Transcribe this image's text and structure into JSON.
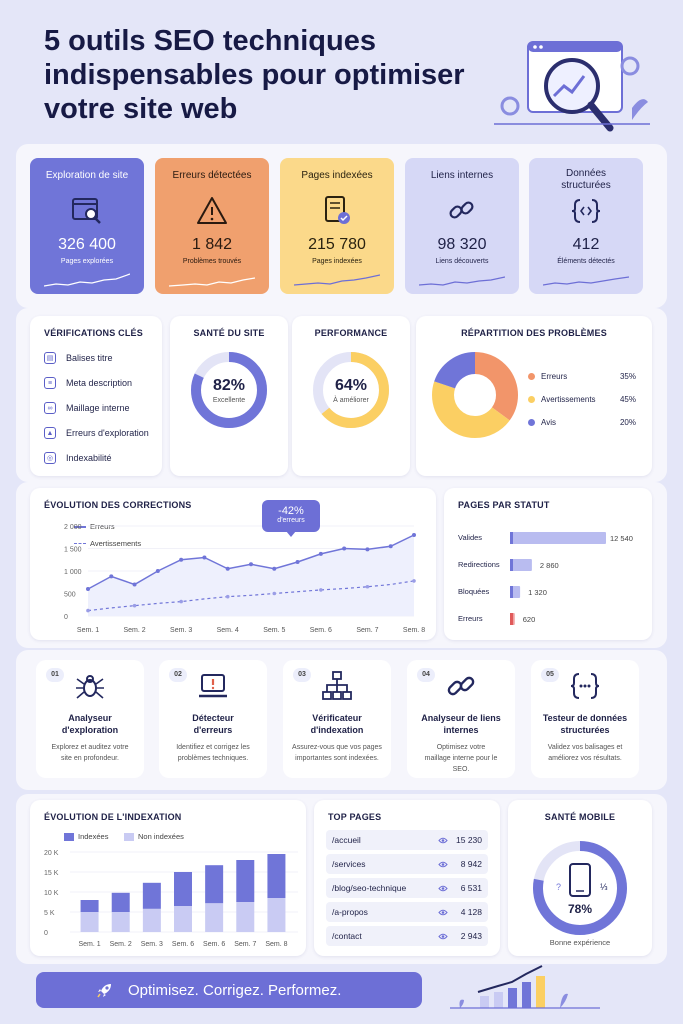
{
  "title_lines": [
    "5 outils SEO techniques",
    "indispensables pour optimiser",
    "votre site web"
  ],
  "kpis": [
    {
      "label": "Exploration de site",
      "value": "326 400",
      "sub": "Pages explorées",
      "bg": "#7075d8",
      "fg": "#ffffff",
      "icon": "crawl-browser-icon"
    },
    {
      "label": "Erreurs détectées",
      "value": "1 842",
      "sub": "Problèmes trouvés",
      "bg": "#f0a06e",
      "fg": "#2a1a10",
      "icon": "warning-icon"
    },
    {
      "label": "Pages indexées",
      "value": "215 780",
      "sub": "Pages indexées",
      "bg": "#fbd98a",
      "fg": "#2a2210",
      "icon": "indexed-document-icon"
    },
    {
      "label": "Liens internes",
      "value": "98 320",
      "sub": "Liens découverts",
      "bg": "#d6d8f6",
      "fg": "#1f2147",
      "icon": "link-icon"
    },
    {
      "label": "Données structurées",
      "value": "412",
      "sub": "Éléments détectés",
      "bg": "#d6d8f6",
      "fg": "#1f2147",
      "icon": "code-icon"
    }
  ],
  "checks": {
    "title": "VÉRIFICATIONS CLÉS",
    "items": [
      "Balises titre",
      "Meta description",
      "Maillage interne",
      "Erreurs d'exploration",
      "Indexabilité"
    ]
  },
  "health": {
    "title": "SANTÉ DU SITE",
    "value": "82%",
    "sub": "Excellente",
    "pct": 82
  },
  "performance": {
    "title": "PERFORMANCE",
    "value": "64%",
    "sub": "À améliorer",
    "pct": 64
  },
  "issues": {
    "title": "RÉPARTITION DES PROBLÈMES",
    "items": [
      {
        "name": "Erreurs",
        "value": "35%",
        "pct": 35,
        "color": "#f2956a"
      },
      {
        "name": "Avertissements",
        "value": "45%",
        "pct": 45,
        "color": "#fbcf63"
      },
      {
        "name": "Avis",
        "value": "20%",
        "pct": 20,
        "color": "#7075d8"
      }
    ]
  },
  "corrections": {
    "title": "ÉVOLUTION DES CORRECTIONS",
    "callout_value": "-42%",
    "callout_sub": "d'erreurs",
    "series_names": [
      "Erreurs",
      "Avertissements"
    ],
    "ticks": [
      "2 000",
      "1 500",
      "1 000",
      "500",
      "0"
    ],
    "weeks": [
      "Sem. 1",
      "Sem. 2",
      "Sem. 3",
      "Sem. 4",
      "Sem. 5",
      "Sem. 6",
      "Sem. 7",
      "Sem. 8"
    ]
  },
  "status": {
    "title": "PAGES PAR STATUT",
    "rows": [
      {
        "label": "Valides",
        "value": "12 540"
      },
      {
        "label": "Redirections",
        "value": "2 860"
      },
      {
        "label": "Bloquées",
        "value": "1 320"
      },
      {
        "label": "Erreurs",
        "value": "620"
      }
    ]
  },
  "tools": [
    {
      "num": "01",
      "title": "Analyseur d'exploration",
      "desc": "Explorez et auditez votre site en profondeur.",
      "icon": "spider-icon"
    },
    {
      "num": "02",
      "title": "Détecteur d'erreurs",
      "desc": "Identifiez et corrigez les problèmes techniques.",
      "icon": "laptop-warning-icon"
    },
    {
      "num": "03",
      "title": "Vérificateur d'indexation",
      "desc": "Assurez-vous que vos pages importantes sont indexées.",
      "icon": "sitemap-icon"
    },
    {
      "num": "04",
      "title": "Analyseur de liens internes",
      "desc": "Optimisez votre maillage interne pour le SEO.",
      "icon": "link-icon"
    },
    {
      "num": "05",
      "title": "Testeur de données structurées",
      "desc": "Validez vos balisages et améliorez vos résultats.",
      "icon": "code-braces-icon"
    }
  ],
  "indexation": {
    "title": "ÉVOLUTION DE L'INDEXATION",
    "legend": [
      "Indexées",
      "Non indexées"
    ],
    "ticks": [
      "20 K",
      "15 K",
      "10 K",
      "5 K",
      "0"
    ],
    "weeks": [
      "Sem. 1",
      "Sem. 2",
      "Sem. 3",
      "Sem. 6",
      "Sem. 6",
      "Sem. 7",
      "Sem. 8"
    ]
  },
  "top_pages": {
    "title": "TOP PAGES",
    "rows": [
      {
        "path": "/accueil",
        "views": "15 230"
      },
      {
        "path": "/services",
        "views": "8 942"
      },
      {
        "path": "/blog/seo-technique",
        "views": "6 531"
      },
      {
        "path": "/a-propos",
        "views": "4 128"
      },
      {
        "path": "/contact",
        "views": "2 943"
      }
    ]
  },
  "mobile": {
    "title": "SANTÉ MOBILE",
    "value": "78%",
    "sub": "Bonne expérience",
    "pct": 78
  },
  "cta": "Optimisez. Corrigez. Performez.",
  "colors": {
    "primary": "#7075d8",
    "light": "#c9cbf3",
    "orange": "#f2956a",
    "yellow": "#fbcf63"
  },
  "chart_data": [
    {
      "type": "line",
      "title": "ÉVOLUTION DES CORRECTIONS",
      "x": [
        "Sem. 1",
        "",
        "Sem. 2",
        "",
        "Sem. 3",
        "",
        "Sem. 4",
        "",
        "Sem. 5",
        "",
        "Sem. 6",
        "",
        "Sem. 7",
        "",
        "Sem. 8"
      ],
      "series": [
        {
          "name": "Erreurs",
          "values": [
            600,
            880,
            700,
            1000,
            1250,
            1300,
            1050,
            1150,
            1050,
            1200,
            1380,
            1500,
            1480,
            1550,
            1800
          ]
        },
        {
          "name": "Avertissements",
          "values": [
            120,
            180,
            230,
            280,
            320,
            380,
            430,
            460,
            500,
            540,
            580,
            610,
            650,
            700,
            780
          ]
        }
      ],
      "ylim": [
        0,
        2000
      ]
    },
    {
      "type": "bar",
      "title": "PAGES PAR STATUT",
      "categories": [
        "Valides",
        "Redirections",
        "Bloquées",
        "Erreurs"
      ],
      "values": [
        12540,
        2860,
        1320,
        620
      ]
    },
    {
      "type": "bar",
      "title": "ÉVOLUTION DE L'INDEXATION",
      "categories": [
        "Sem. 1",
        "Sem. 2",
        "Sem. 3",
        "Sem. 6",
        "Sem. 6",
        "Sem. 7",
        "Sem. 8"
      ],
      "series": [
        {
          "name": "Indexées",
          "values": [
            3000,
            4800,
            6500,
            8500,
            9500,
            10500,
            11000
          ]
        },
        {
          "name": "Non indexées",
          "values": [
            5000,
            5000,
            5800,
            6500,
            7200,
            7500,
            8500
          ]
        }
      ],
      "ylim": [
        0,
        20000
      ]
    },
    {
      "type": "pie",
      "title": "RÉPARTITION DES PROBLÈMES",
      "categories": [
        "Erreurs",
        "Avertissements",
        "Avis"
      ],
      "values": [
        35,
        45,
        20
      ]
    }
  ]
}
